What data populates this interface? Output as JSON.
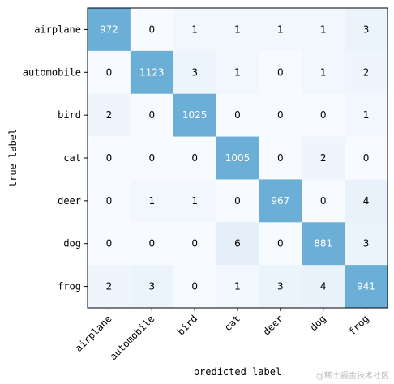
{
  "chart_data": {
    "type": "heatmap",
    "title": "",
    "xlabel": "predicted label",
    "ylabel": "true label",
    "categories": [
      "airplane",
      "automobile",
      "bird",
      "cat",
      "deer",
      "dog",
      "frog"
    ],
    "matrix": [
      [
        972,
        0,
        1,
        1,
        1,
        1,
        3
      ],
      [
        0,
        1123,
        3,
        1,
        0,
        1,
        2
      ],
      [
        2,
        0,
        1025,
        0,
        0,
        0,
        1
      ],
      [
        0,
        0,
        0,
        1005,
        0,
        2,
        0
      ],
      [
        0,
        1,
        1,
        0,
        967,
        0,
        4
      ],
      [
        0,
        0,
        0,
        6,
        0,
        881,
        3
      ],
      [
        2,
        3,
        0,
        1,
        3,
        4,
        941
      ]
    ],
    "colormap": "Blues",
    "colors": {
      "low": "#f7fbff",
      "high": "#08306b"
    },
    "grid": false
  },
  "watermark": "@稀土掘金技术社区"
}
